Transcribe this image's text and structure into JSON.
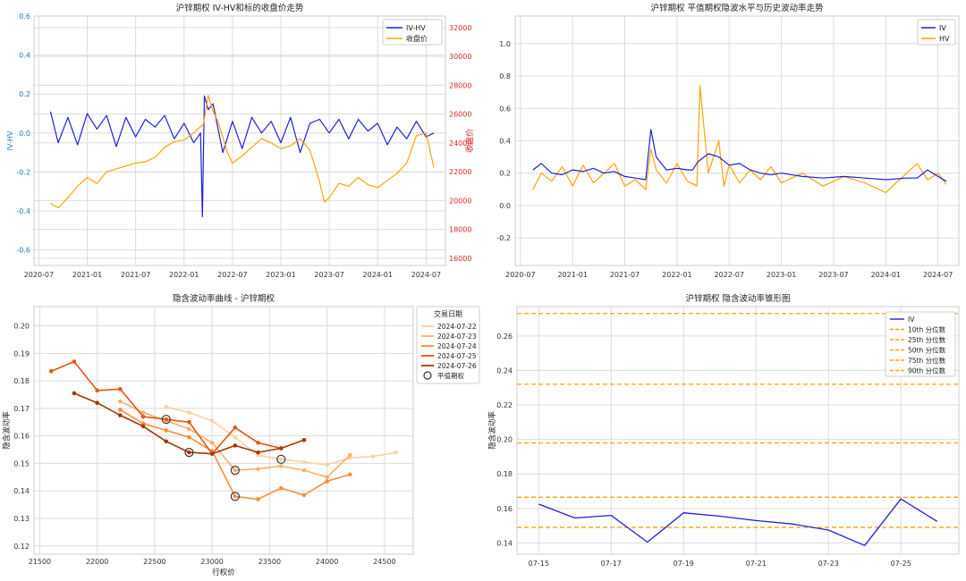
{
  "colors": {
    "blue": "#1f1fe0",
    "orange": "#ffa500",
    "axis_blue": "#1f77b4",
    "axis_red": "#d62728",
    "grid": "#dcdcdc",
    "smile": [
      "#fdd0a2",
      "#fdae6b",
      "#fd8d3c",
      "#e6550d",
      "#a63603"
    ]
  },
  "chart_data": [
    {
      "type": "line",
      "title": "沪锌期权 IV-HV和标的收盘价走势",
      "ylabel": "IV-HV",
      "y2label": "收盘价",
      "ylim": [
        -0.68,
        0.6
      ],
      "y2lim": [
        15500,
        32800
      ],
      "yticks": [
        "-0.6",
        "-0.4",
        "-0.2",
        "0.0",
        "0.2",
        "0.4",
        "0.6"
      ],
      "y2ticks": [
        "16000",
        "18000",
        "20000",
        "22000",
        "24000",
        "26000",
        "28000",
        "30000",
        "32000"
      ],
      "xticks": [
        "2020-07",
        "2021-01",
        "2021-07",
        "2022-01",
        "2022-07",
        "2023-01",
        "2023-07",
        "2024-01",
        "2024-07"
      ],
      "legend": [
        "IV-HV",
        "收盘价"
      ],
      "legend_position": "top-right",
      "grid": true,
      "series": [
        {
          "name": "IV-HV",
          "axis": "left",
          "x": [
            2020.62,
            2020.7,
            2020.8,
            2020.9,
            2021.0,
            2021.1,
            2021.2,
            2021.3,
            2021.4,
            2021.5,
            2021.6,
            2021.7,
            2021.8,
            2021.9,
            2022.0,
            2022.1,
            2022.17,
            2022.19,
            2022.21,
            2022.25,
            2022.3,
            2022.4,
            2022.5,
            2022.6,
            2022.7,
            2022.8,
            2022.9,
            2023.0,
            2023.1,
            2023.2,
            2023.3,
            2023.4,
            2023.5,
            2023.6,
            2023.7,
            2023.8,
            2023.9,
            2024.0,
            2024.1,
            2024.2,
            2024.3,
            2024.4,
            2024.5,
            2024.58
          ],
          "values": [
            0.11,
            -0.05,
            0.08,
            -0.06,
            0.1,
            0.02,
            0.09,
            -0.07,
            0.08,
            -0.02,
            0.07,
            0.03,
            0.09,
            -0.03,
            0.05,
            -0.05,
            0.0,
            -0.43,
            0.19,
            0.12,
            0.15,
            -0.1,
            0.06,
            -0.08,
            0.08,
            0.0,
            0.06,
            -0.05,
            0.08,
            -0.1,
            0.05,
            0.07,
            0.0,
            0.07,
            -0.03,
            0.07,
            0.01,
            0.05,
            -0.06,
            0.03,
            -0.03,
            0.06,
            -0.02,
            0.0
          ]
        },
        {
          "name": "收盘价",
          "axis": "right",
          "x": [
            2020.62,
            2020.7,
            2020.8,
            2020.9,
            2021.0,
            2021.1,
            2021.2,
            2021.3,
            2021.4,
            2021.5,
            2021.6,
            2021.7,
            2021.8,
            2021.9,
            2022.0,
            2022.1,
            2022.2,
            2022.25,
            2022.3,
            2022.35,
            2022.4,
            2022.45,
            2022.5,
            2022.6,
            2022.7,
            2022.8,
            2022.9,
            2023.0,
            2023.1,
            2023.2,
            2023.3,
            2023.4,
            2023.45,
            2023.5,
            2023.6,
            2023.7,
            2023.8,
            2023.9,
            2024.0,
            2024.1,
            2024.2,
            2024.3,
            2024.4,
            2024.5,
            2024.58
          ],
          "values": [
            19800,
            19500,
            20200,
            21000,
            21600,
            21200,
            22000,
            22200,
            22400,
            22600,
            22700,
            23000,
            23700,
            24100,
            24200,
            24700,
            25300,
            27300,
            26200,
            25500,
            24400,
            23300,
            22600,
            23100,
            23700,
            24300,
            24000,
            23600,
            23800,
            24300,
            23500,
            21300,
            19900,
            20200,
            21200,
            21000,
            21600,
            21100,
            20900,
            21400,
            21900,
            22600,
            24500,
            24700,
            22300
          ]
        }
      ]
    },
    {
      "type": "line",
      "title": "沪锌期权 平值期权隐波水平与历史波动率走势",
      "ylim": [
        -0.37,
        1.17
      ],
      "yticks": [
        "-0.2",
        "0.0",
        "0.2",
        "0.4",
        "0.6",
        "0.8",
        "1.0"
      ],
      "xticks": [
        "2020-07",
        "2021-01",
        "2021-07",
        "2022-01",
        "2022-07",
        "2023-01",
        "2023-07",
        "2024-01",
        "2024-07"
      ],
      "legend": [
        "IV",
        "HV"
      ],
      "legend_position": "top-right",
      "grid": true,
      "series": [
        {
          "name": "IV",
          "x": [
            2020.62,
            2020.7,
            2020.8,
            2020.9,
            2021.0,
            2021.1,
            2021.2,
            2021.3,
            2021.4,
            2021.5,
            2021.6,
            2021.7,
            2021.75,
            2021.8,
            2021.9,
            2022.0,
            2022.1,
            2022.15,
            2022.2,
            2022.3,
            2022.4,
            2022.5,
            2022.6,
            2022.7,
            2022.8,
            2022.9,
            2023.0,
            2023.2,
            2023.4,
            2023.6,
            2023.8,
            2024.0,
            2024.2,
            2024.3,
            2024.4,
            2024.5,
            2024.58
          ],
          "values": [
            0.22,
            0.26,
            0.2,
            0.19,
            0.22,
            0.21,
            0.23,
            0.2,
            0.21,
            0.18,
            0.17,
            0.16,
            0.47,
            0.3,
            0.22,
            0.23,
            0.22,
            0.22,
            0.27,
            0.32,
            0.3,
            0.25,
            0.26,
            0.22,
            0.2,
            0.19,
            0.2,
            0.18,
            0.17,
            0.18,
            0.17,
            0.16,
            0.17,
            0.17,
            0.22,
            0.18,
            0.15
          ]
        },
        {
          "name": "HV",
          "x": [
            2020.62,
            2020.7,
            2020.8,
            2020.9,
            2021.0,
            2021.1,
            2021.2,
            2021.3,
            2021.4,
            2021.5,
            2021.6,
            2021.7,
            2021.75,
            2021.8,
            2021.9,
            2022.0,
            2022.1,
            2022.19,
            2022.22,
            2022.3,
            2022.4,
            2022.45,
            2022.5,
            2022.6,
            2022.7,
            2022.8,
            2022.9,
            2023.0,
            2023.2,
            2023.4,
            2023.6,
            2023.8,
            2024.0,
            2024.2,
            2024.3,
            2024.4,
            2024.5,
            2024.58
          ],
          "values": [
            0.1,
            0.2,
            0.15,
            0.24,
            0.12,
            0.25,
            0.14,
            0.2,
            0.26,
            0.12,
            0.16,
            0.1,
            0.35,
            0.22,
            0.14,
            0.26,
            0.15,
            0.12,
            0.74,
            0.2,
            0.4,
            0.12,
            0.25,
            0.14,
            0.22,
            0.16,
            0.24,
            0.14,
            0.2,
            0.12,
            0.18,
            0.14,
            0.08,
            0.2,
            0.26,
            0.16,
            0.2,
            0.13
          ]
        }
      ]
    },
    {
      "type": "line",
      "title": "隐含波动率曲线 - 沪锌期权",
      "xlabel": "行权价",
      "ylabel": "隐含波动率",
      "xlim": [
        21450,
        24750
      ],
      "ylim": [
        0.117,
        0.207
      ],
      "xticks": [
        "21500",
        "22000",
        "22500",
        "23000",
        "23500",
        "24000",
        "24500"
      ],
      "yticks": [
        "0.12",
        "0.13",
        "0.14",
        "0.15",
        "0.16",
        "0.17",
        "0.18",
        "0.19",
        "0.20"
      ],
      "legend_title": "交易日期",
      "legend": [
        "2024-07-22",
        "2024-07-23",
        "2024-07-24",
        "2024-07-25",
        "2024-07-26",
        "平值期权"
      ],
      "legend_position": "top-right",
      "grid": true,
      "series": [
        {
          "name": "2024-07-22",
          "x": [
            22600,
            22800,
            23000,
            23200,
            23400,
            23600,
            23800,
            24000,
            24200,
            24400,
            24600
          ],
          "values": [
            0.1705,
            0.1685,
            0.1655,
            0.1595,
            0.153,
            0.1515,
            0.1505,
            0.1495,
            0.152,
            0.1525,
            0.154
          ],
          "atm": [
            23600,
            0.1515
          ]
        },
        {
          "name": "2024-07-23",
          "x": [
            22200,
            22400,
            22600,
            22800,
            23000,
            23200,
            23400,
            23600,
            23800,
            24000,
            24200
          ],
          "values": [
            0.1725,
            0.1685,
            0.1655,
            0.1625,
            0.1575,
            0.1475,
            0.148,
            0.149,
            0.1475,
            0.145,
            0.153
          ],
          "atm": [
            23200,
            0.1475
          ]
        },
        {
          "name": "2024-07-24",
          "x": [
            22200,
            22400,
            22600,
            22800,
            23000,
            23200,
            23400,
            23600,
            23800,
            24000,
            24200
          ],
          "values": [
            0.1695,
            0.1645,
            0.162,
            0.1595,
            0.1545,
            0.138,
            0.137,
            0.141,
            0.1385,
            0.1435,
            0.146
          ],
          "atm": [
            23200,
            0.138
          ]
        },
        {
          "name": "2024-07-25",
          "x": [
            21600,
            21800,
            22000,
            22200,
            22400,
            22600,
            22800,
            23000,
            23200,
            23400,
            23600
          ],
          "values": [
            0.1835,
            0.187,
            0.1765,
            0.177,
            0.167,
            0.166,
            0.165,
            0.1535,
            0.163,
            0.1575,
            0.1555
          ],
          "atm": [
            22600,
            0.166
          ]
        },
        {
          "name": "2024-07-26",
          "x": [
            21800,
            22000,
            22200,
            22400,
            22600,
            22800,
            23000,
            23200,
            23400,
            23600,
            23800
          ],
          "values": [
            0.1755,
            0.172,
            0.1675,
            0.1635,
            0.158,
            0.154,
            0.1535,
            0.1565,
            0.154,
            0.1555,
            0.1585
          ],
          "atm": [
            22800,
            0.154
          ]
        }
      ]
    },
    {
      "type": "line",
      "title": "沪锌期权 隐含波动率锥形图",
      "ylabel": "隐含波动率",
      "xlim": [
        0,
        12
      ],
      "ylim": [
        0.1335,
        0.277
      ],
      "yticks": [
        "0.14",
        "0.16",
        "0.18",
        "0.20",
        "0.22",
        "0.24",
        "0.26"
      ],
      "xticks": [
        "07-15",
        "07-17",
        "07-19",
        "07-21",
        "07-23",
        "07-25"
      ],
      "xtick_positions": [
        0,
        2,
        4,
        6,
        8,
        10
      ],
      "legend": [
        "IV",
        "10th 分位数",
        "25th 分位数",
        "50th 分位数",
        "75th 分位数",
        "90th 分位数"
      ],
      "legend_position": "top-right",
      "grid": true,
      "series": [
        {
          "name": "IV",
          "x": [
            0,
            1,
            2,
            3,
            4,
            5,
            6,
            7,
            8,
            9,
            10,
            11
          ],
          "values": [
            0.1625,
            0.1545,
            0.156,
            0.1405,
            0.1575,
            0.1555,
            0.153,
            0.151,
            0.1475,
            0.1385,
            0.1655,
            0.1525
          ]
        }
      ],
      "percentiles": [
        {
          "name": "10th 分位数",
          "value": 0.149
        },
        {
          "name": "25th 分位数",
          "value": 0.1665
        },
        {
          "name": "50th 分位数",
          "value": 0.198
        },
        {
          "name": "75th 分位数",
          "value": 0.232
        },
        {
          "name": "90th 分位数",
          "value": 0.273
        }
      ]
    }
  ]
}
